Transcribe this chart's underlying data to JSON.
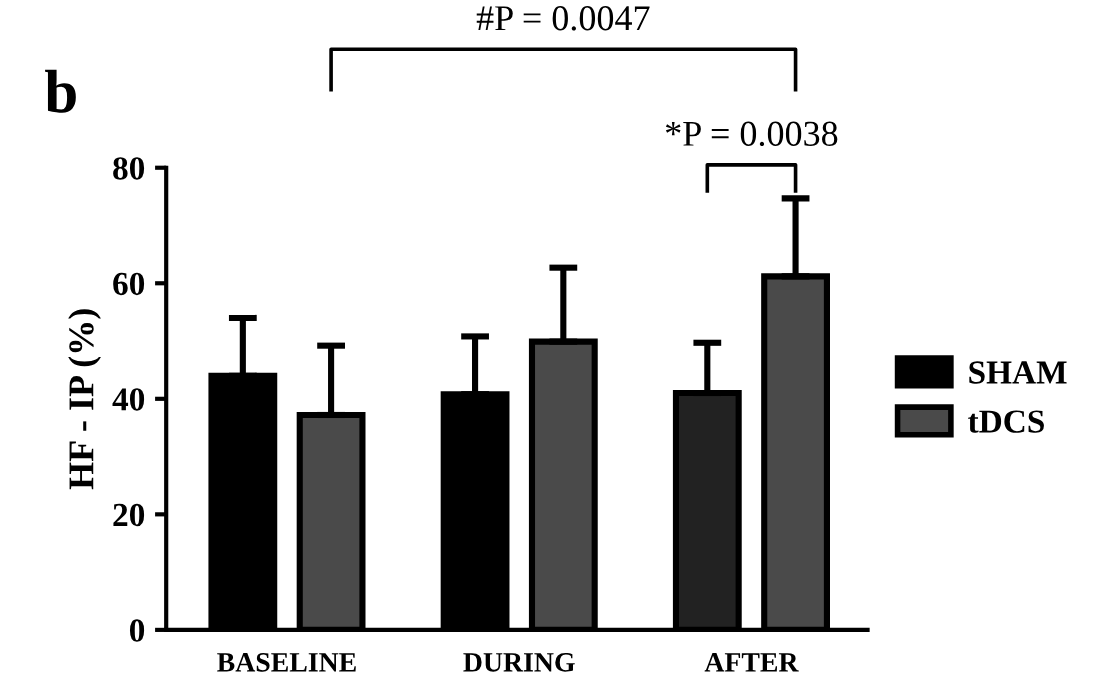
{
  "chart_data": {
    "type": "bar",
    "categories": [
      "BASELINE",
      "DURING",
      "AFTER"
    ],
    "ylabel": "HF - IP (%)",
    "series": [
      {
        "name": "SHAM",
        "color": "#000000",
        "colors": [
          "#000000",
          "#000000",
          "#222222"
        ],
        "values": [
          44,
          40.8,
          41
        ],
        "errors": [
          [
            44,
            54
          ],
          [
            40.8,
            50.8
          ],
          [
            41,
            49.7
          ]
        ]
      },
      {
        "name": "tDCS",
        "color": "#4a4a4a",
        "values": [
          37.2,
          49.9,
          61.2
        ],
        "errors": [
          [
            37.2,
            49.2
          ],
          [
            49.9,
            62.7
          ],
          [
            61.2,
            74.7
          ]
        ]
      }
    ],
    "ylim": [
      0,
      80
    ],
    "yticks": [
      0,
      20,
      40,
      60,
      80
    ],
    "grid": false,
    "legend": "right",
    "annotations": [
      "b",
      "#P = 0.0047",
      "*P = 0.0038"
    ]
  }
}
